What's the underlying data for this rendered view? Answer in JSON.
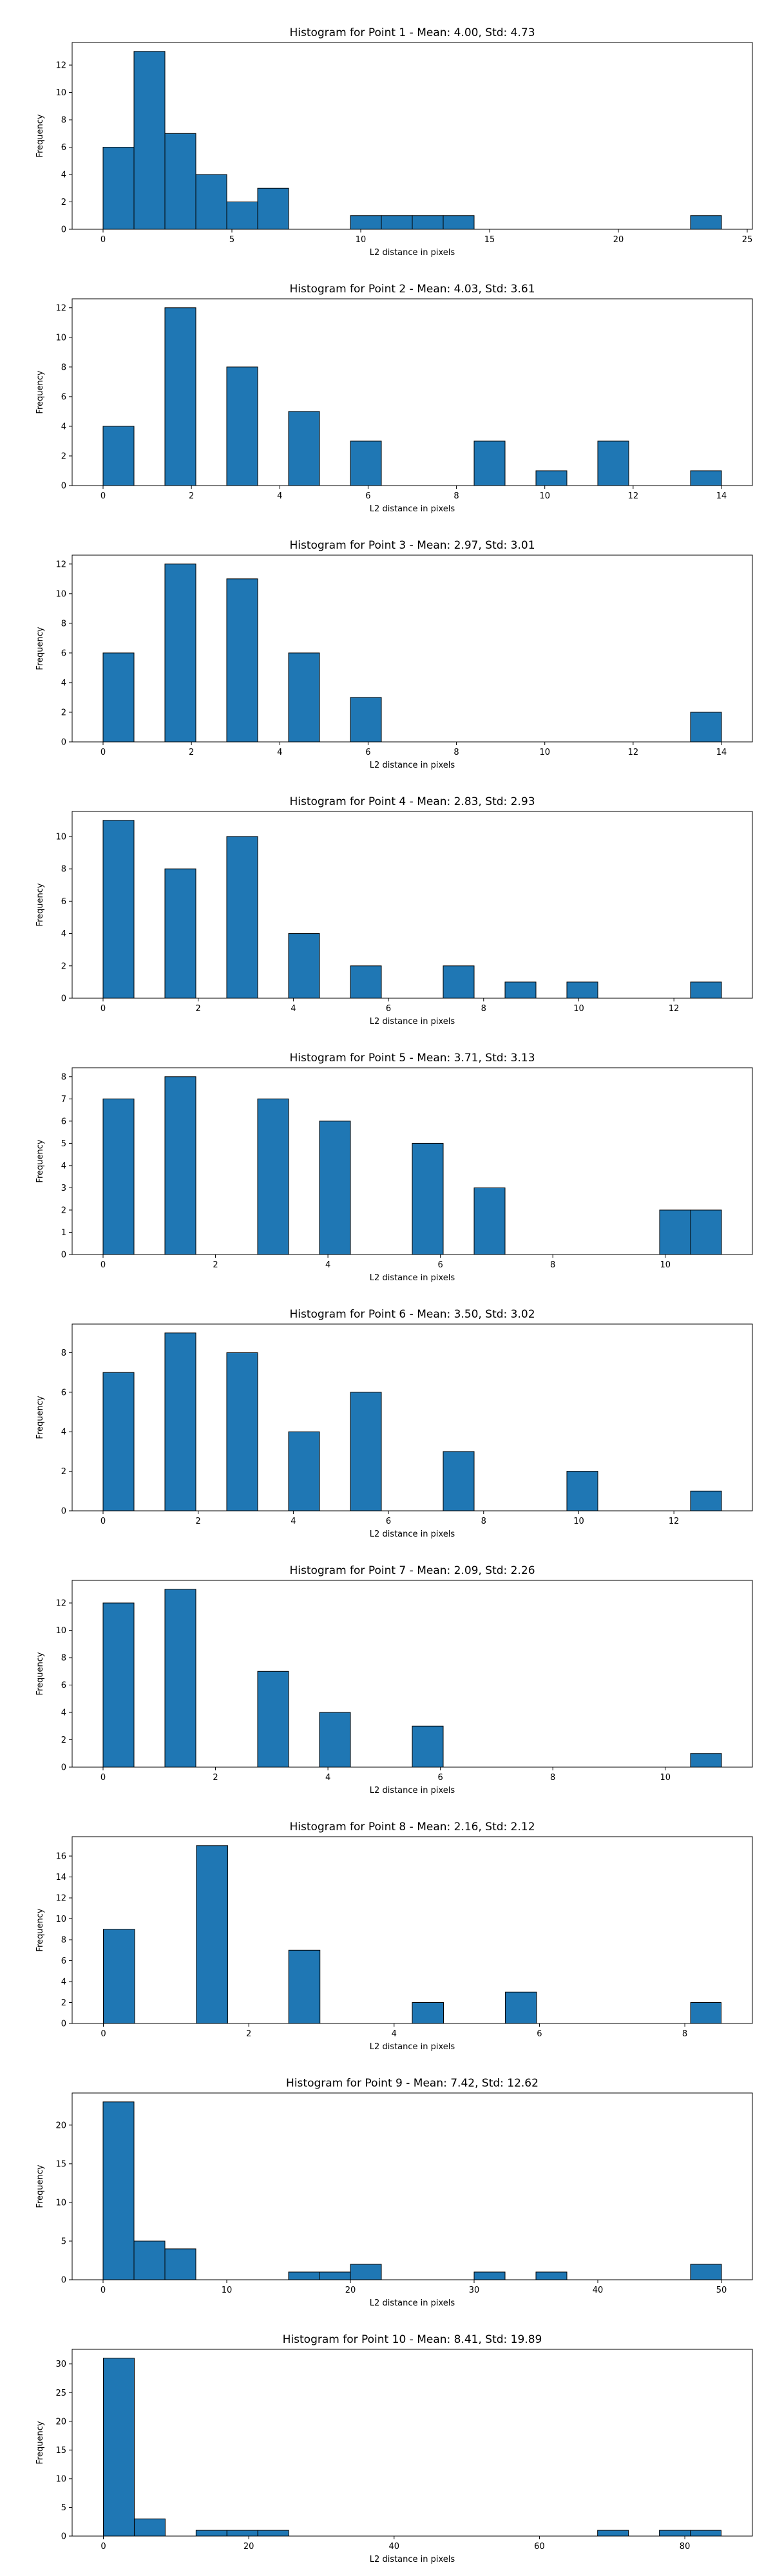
{
  "chart_data": [
    {
      "type": "bar",
      "title": "Histogram for Point 1 - Mean: 4.00, Std: 4.73",
      "xlabel": "L2 distance in pixels",
      "ylabel": "Frequency",
      "xlim": [
        -1.2,
        25.2
      ],
      "ylim": [
        0,
        13.65
      ],
      "xticks": [
        0,
        5,
        10,
        15,
        20,
        25
      ],
      "yticks": [
        0,
        2,
        4,
        6,
        8,
        10,
        12
      ],
      "grid": false,
      "bins": [
        {
          "start": 0.0,
          "end": 1.2,
          "count": 6
        },
        {
          "start": 1.2,
          "end": 2.4,
          "count": 13
        },
        {
          "start": 2.4,
          "end": 3.6,
          "count": 7
        },
        {
          "start": 3.6,
          "end": 4.8,
          "count": 4
        },
        {
          "start": 4.8,
          "end": 6.0,
          "count": 2
        },
        {
          "start": 6.0,
          "end": 7.2,
          "count": 3
        },
        {
          "start": 9.6,
          "end": 10.8,
          "count": 1
        },
        {
          "start": 10.8,
          "end": 12.0,
          "count": 1
        },
        {
          "start": 12.0,
          "end": 13.2,
          "count": 1
        },
        {
          "start": 13.2,
          "end": 14.4,
          "count": 1
        },
        {
          "start": 22.8,
          "end": 24.0,
          "count": 1
        }
      ]
    },
    {
      "type": "bar",
      "title": "Histogram for Point 2 - Mean: 4.03, Std: 3.61",
      "xlabel": "L2 distance in pixels",
      "ylabel": "Frequency",
      "xlim": [
        -0.7,
        14.7
      ],
      "ylim": [
        0,
        12.6
      ],
      "xticks": [
        0,
        2,
        4,
        6,
        8,
        10,
        12,
        14
      ],
      "yticks": [
        0,
        2,
        4,
        6,
        8,
        10,
        12
      ],
      "grid": false,
      "bins": [
        {
          "start": 0.0,
          "end": 0.7,
          "count": 4
        },
        {
          "start": 1.4,
          "end": 2.1,
          "count": 12
        },
        {
          "start": 2.8,
          "end": 3.5,
          "count": 8
        },
        {
          "start": 4.2,
          "end": 4.9,
          "count": 5
        },
        {
          "start": 5.6,
          "end": 6.3,
          "count": 3
        },
        {
          "start": 8.4,
          "end": 9.1,
          "count": 3
        },
        {
          "start": 9.8,
          "end": 10.5,
          "count": 1
        },
        {
          "start": 11.2,
          "end": 11.9,
          "count": 3
        },
        {
          "start": 13.3,
          "end": 14.0,
          "count": 1
        }
      ]
    },
    {
      "type": "bar",
      "title": "Histogram for Point 3 - Mean: 2.97, Std: 3.01",
      "xlabel": "L2 distance in pixels",
      "ylabel": "Frequency",
      "xlim": [
        -0.7,
        14.7
      ],
      "ylim": [
        0,
        12.6
      ],
      "xticks": [
        0,
        2,
        4,
        6,
        8,
        10,
        12,
        14
      ],
      "yticks": [
        0,
        2,
        4,
        6,
        8,
        10,
        12
      ],
      "grid": false,
      "bins": [
        {
          "start": 0.0,
          "end": 0.7,
          "count": 6
        },
        {
          "start": 1.4,
          "end": 2.1,
          "count": 12
        },
        {
          "start": 2.8,
          "end": 3.5,
          "count": 11
        },
        {
          "start": 4.2,
          "end": 4.9,
          "count": 6
        },
        {
          "start": 5.6,
          "end": 6.3,
          "count": 3
        },
        {
          "start": 13.3,
          "end": 14.0,
          "count": 2
        }
      ]
    },
    {
      "type": "bar",
      "title": "Histogram for Point 4 - Mean: 2.83, Std: 2.93",
      "xlabel": "L2 distance in pixels",
      "ylabel": "Frequency",
      "xlim": [
        -0.65,
        13.65
      ],
      "ylim": [
        0,
        11.55
      ],
      "xticks": [
        0,
        2,
        4,
        6,
        8,
        10,
        12
      ],
      "yticks": [
        0,
        2,
        4,
        6,
        8,
        10
      ],
      "grid": false,
      "bins": [
        {
          "start": 0.0,
          "end": 0.65,
          "count": 11
        },
        {
          "start": 1.3,
          "end": 1.95,
          "count": 8
        },
        {
          "start": 2.6,
          "end": 3.25,
          "count": 10
        },
        {
          "start": 3.9,
          "end": 4.55,
          "count": 4
        },
        {
          "start": 5.2,
          "end": 5.85,
          "count": 2
        },
        {
          "start": 7.15,
          "end": 7.8,
          "count": 2
        },
        {
          "start": 8.45,
          "end": 9.1,
          "count": 1
        },
        {
          "start": 9.75,
          "end": 10.4,
          "count": 1
        },
        {
          "start": 12.35,
          "end": 13.0,
          "count": 1
        }
      ]
    },
    {
      "type": "bar",
      "title": "Histogram for Point 5 - Mean: 3.71, Std: 3.13",
      "xlabel": "L2 distance in pixels",
      "ylabel": "Frequency",
      "xlim": [
        -0.55,
        11.55
      ],
      "ylim": [
        0,
        8.4
      ],
      "xticks": [
        0,
        2,
        4,
        6,
        8,
        10
      ],
      "yticks": [
        0,
        1,
        2,
        3,
        4,
        5,
        6,
        7,
        8
      ],
      "grid": false,
      "bins": [
        {
          "start": 0.0,
          "end": 0.55,
          "count": 7
        },
        {
          "start": 1.1,
          "end": 1.65,
          "count": 8
        },
        {
          "start": 2.75,
          "end": 3.3,
          "count": 7
        },
        {
          "start": 3.85,
          "end": 4.4,
          "count": 6
        },
        {
          "start": 5.5,
          "end": 6.05,
          "count": 5
        },
        {
          "start": 6.6,
          "end": 7.15,
          "count": 3
        },
        {
          "start": 9.9,
          "end": 10.45,
          "count": 2
        },
        {
          "start": 10.45,
          "end": 11.0,
          "count": 2
        }
      ]
    },
    {
      "type": "bar",
      "title": "Histogram for Point 6 - Mean: 3.50, Std: 3.02",
      "xlabel": "L2 distance in pixels",
      "ylabel": "Frequency",
      "xlim": [
        -0.65,
        13.65
      ],
      "ylim": [
        0,
        9.45
      ],
      "xticks": [
        0,
        2,
        4,
        6,
        8,
        10,
        12
      ],
      "yticks": [
        0,
        2,
        4,
        6,
        8
      ],
      "grid": false,
      "bins": [
        {
          "start": 0.0,
          "end": 0.65,
          "count": 7
        },
        {
          "start": 1.3,
          "end": 1.95,
          "count": 9
        },
        {
          "start": 2.6,
          "end": 3.25,
          "count": 8
        },
        {
          "start": 3.9,
          "end": 4.55,
          "count": 4
        },
        {
          "start": 5.2,
          "end": 5.85,
          "count": 6
        },
        {
          "start": 7.15,
          "end": 7.8,
          "count": 3
        },
        {
          "start": 9.75,
          "end": 10.4,
          "count": 2
        },
        {
          "start": 12.35,
          "end": 13.0,
          "count": 1
        }
      ]
    },
    {
      "type": "bar",
      "title": "Histogram for Point 7 - Mean: 2.09, Std: 2.26",
      "xlabel": "L2 distance in pixels",
      "ylabel": "Frequency",
      "xlim": [
        -0.55,
        11.55
      ],
      "ylim": [
        0,
        13.65
      ],
      "xticks": [
        0,
        2,
        4,
        6,
        8,
        10
      ],
      "yticks": [
        0,
        2,
        4,
        6,
        8,
        10,
        12
      ],
      "grid": false,
      "bins": [
        {
          "start": 0.0,
          "end": 0.55,
          "count": 12
        },
        {
          "start": 1.1,
          "end": 1.65,
          "count": 13
        },
        {
          "start": 2.75,
          "end": 3.3,
          "count": 7
        },
        {
          "start": 3.85,
          "end": 4.4,
          "count": 4
        },
        {
          "start": 5.5,
          "end": 6.05,
          "count": 3
        },
        {
          "start": 10.45,
          "end": 11.0,
          "count": 1
        }
      ]
    },
    {
      "type": "bar",
      "title": "Histogram for Point 8 - Mean: 2.16, Std: 2.12",
      "xlabel": "L2 distance in pixels",
      "ylabel": "Frequency",
      "xlim": [
        -0.43,
        8.93
      ],
      "ylim": [
        0,
        17.85
      ],
      "xticks": [
        0,
        2,
        4,
        6,
        8
      ],
      "yticks": [
        0,
        2,
        4,
        6,
        8,
        10,
        12,
        14,
        16
      ],
      "grid": false,
      "bins": [
        {
          "start": 0.0,
          "end": 0.43,
          "count": 9
        },
        {
          "start": 1.28,
          "end": 1.71,
          "count": 17
        },
        {
          "start": 2.55,
          "end": 2.98,
          "count": 7
        },
        {
          "start": 4.25,
          "end": 4.68,
          "count": 2
        },
        {
          "start": 5.53,
          "end": 5.96,
          "count": 3
        },
        {
          "start": 8.08,
          "end": 8.5,
          "count": 2
        }
      ]
    },
    {
      "type": "bar",
      "title": "Histogram for Point 9 - Mean: 7.42, Std: 12.62",
      "xlabel": "L2 distance in pixels",
      "ylabel": "Frequency",
      "xlim": [
        -2.5,
        52.5
      ],
      "ylim": [
        0,
        24.15
      ],
      "xticks": [
        0,
        10,
        20,
        30,
        40,
        50
      ],
      "yticks": [
        0,
        5,
        10,
        15,
        20
      ],
      "grid": false,
      "bins": [
        {
          "start": 0.0,
          "end": 2.5,
          "count": 23
        },
        {
          "start": 2.5,
          "end": 5.0,
          "count": 5
        },
        {
          "start": 5.0,
          "end": 7.5,
          "count": 4
        },
        {
          "start": 15.0,
          "end": 17.5,
          "count": 1
        },
        {
          "start": 17.5,
          "end": 20.0,
          "count": 1
        },
        {
          "start": 20.0,
          "end": 22.5,
          "count": 2
        },
        {
          "start": 30.0,
          "end": 32.5,
          "count": 1
        },
        {
          "start": 35.0,
          "end": 37.5,
          "count": 1
        },
        {
          "start": 47.5,
          "end": 50.0,
          "count": 2
        }
      ]
    },
    {
      "type": "bar",
      "title": "Histogram for Point 10 - Mean: 8.41, Std: 19.89",
      "xlabel": "L2 distance in pixels",
      "ylabel": "Frequency",
      "xlim": [
        -4.3,
        89.3
      ],
      "ylim": [
        0,
        32.55
      ],
      "xticks": [
        0,
        20,
        40,
        60,
        80
      ],
      "yticks": [
        0,
        5,
        10,
        15,
        20,
        25,
        30
      ],
      "grid": false,
      "bins": [
        {
          "start": 0.0,
          "end": 4.25,
          "count": 31
        },
        {
          "start": 4.25,
          "end": 8.5,
          "count": 3
        },
        {
          "start": 12.75,
          "end": 17.0,
          "count": 1
        },
        {
          "start": 17.0,
          "end": 21.25,
          "count": 1
        },
        {
          "start": 21.25,
          "end": 25.5,
          "count": 1
        },
        {
          "start": 68.0,
          "end": 72.25,
          "count": 1
        },
        {
          "start": 76.5,
          "end": 80.75,
          "count": 1
        },
        {
          "start": 80.75,
          "end": 85.0,
          "count": 1
        }
      ]
    }
  ]
}
